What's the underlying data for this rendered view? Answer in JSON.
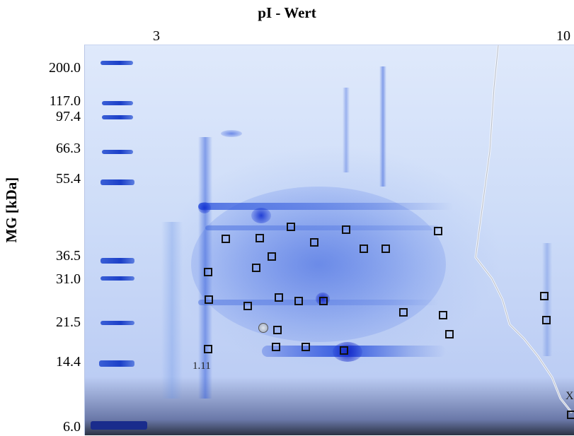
{
  "title": "pI - Wert",
  "ph_scale": {
    "low": "3",
    "high": "10"
  },
  "y_axis_label": "MG [kDa]",
  "mw_markers": [
    "200.0",
    "117.0",
    "97.4",
    "66.3",
    "55.4",
    "36.5",
    "31.0",
    "21.5",
    "14.4",
    "6.0"
  ],
  "spot_labels": {
    "spot_1_11": "1.11",
    "spot_x": "X"
  },
  "colors": {
    "stain": "#1b3fc8",
    "gel_background": "#dfe9fb",
    "box_outline": "#111111"
  }
}
